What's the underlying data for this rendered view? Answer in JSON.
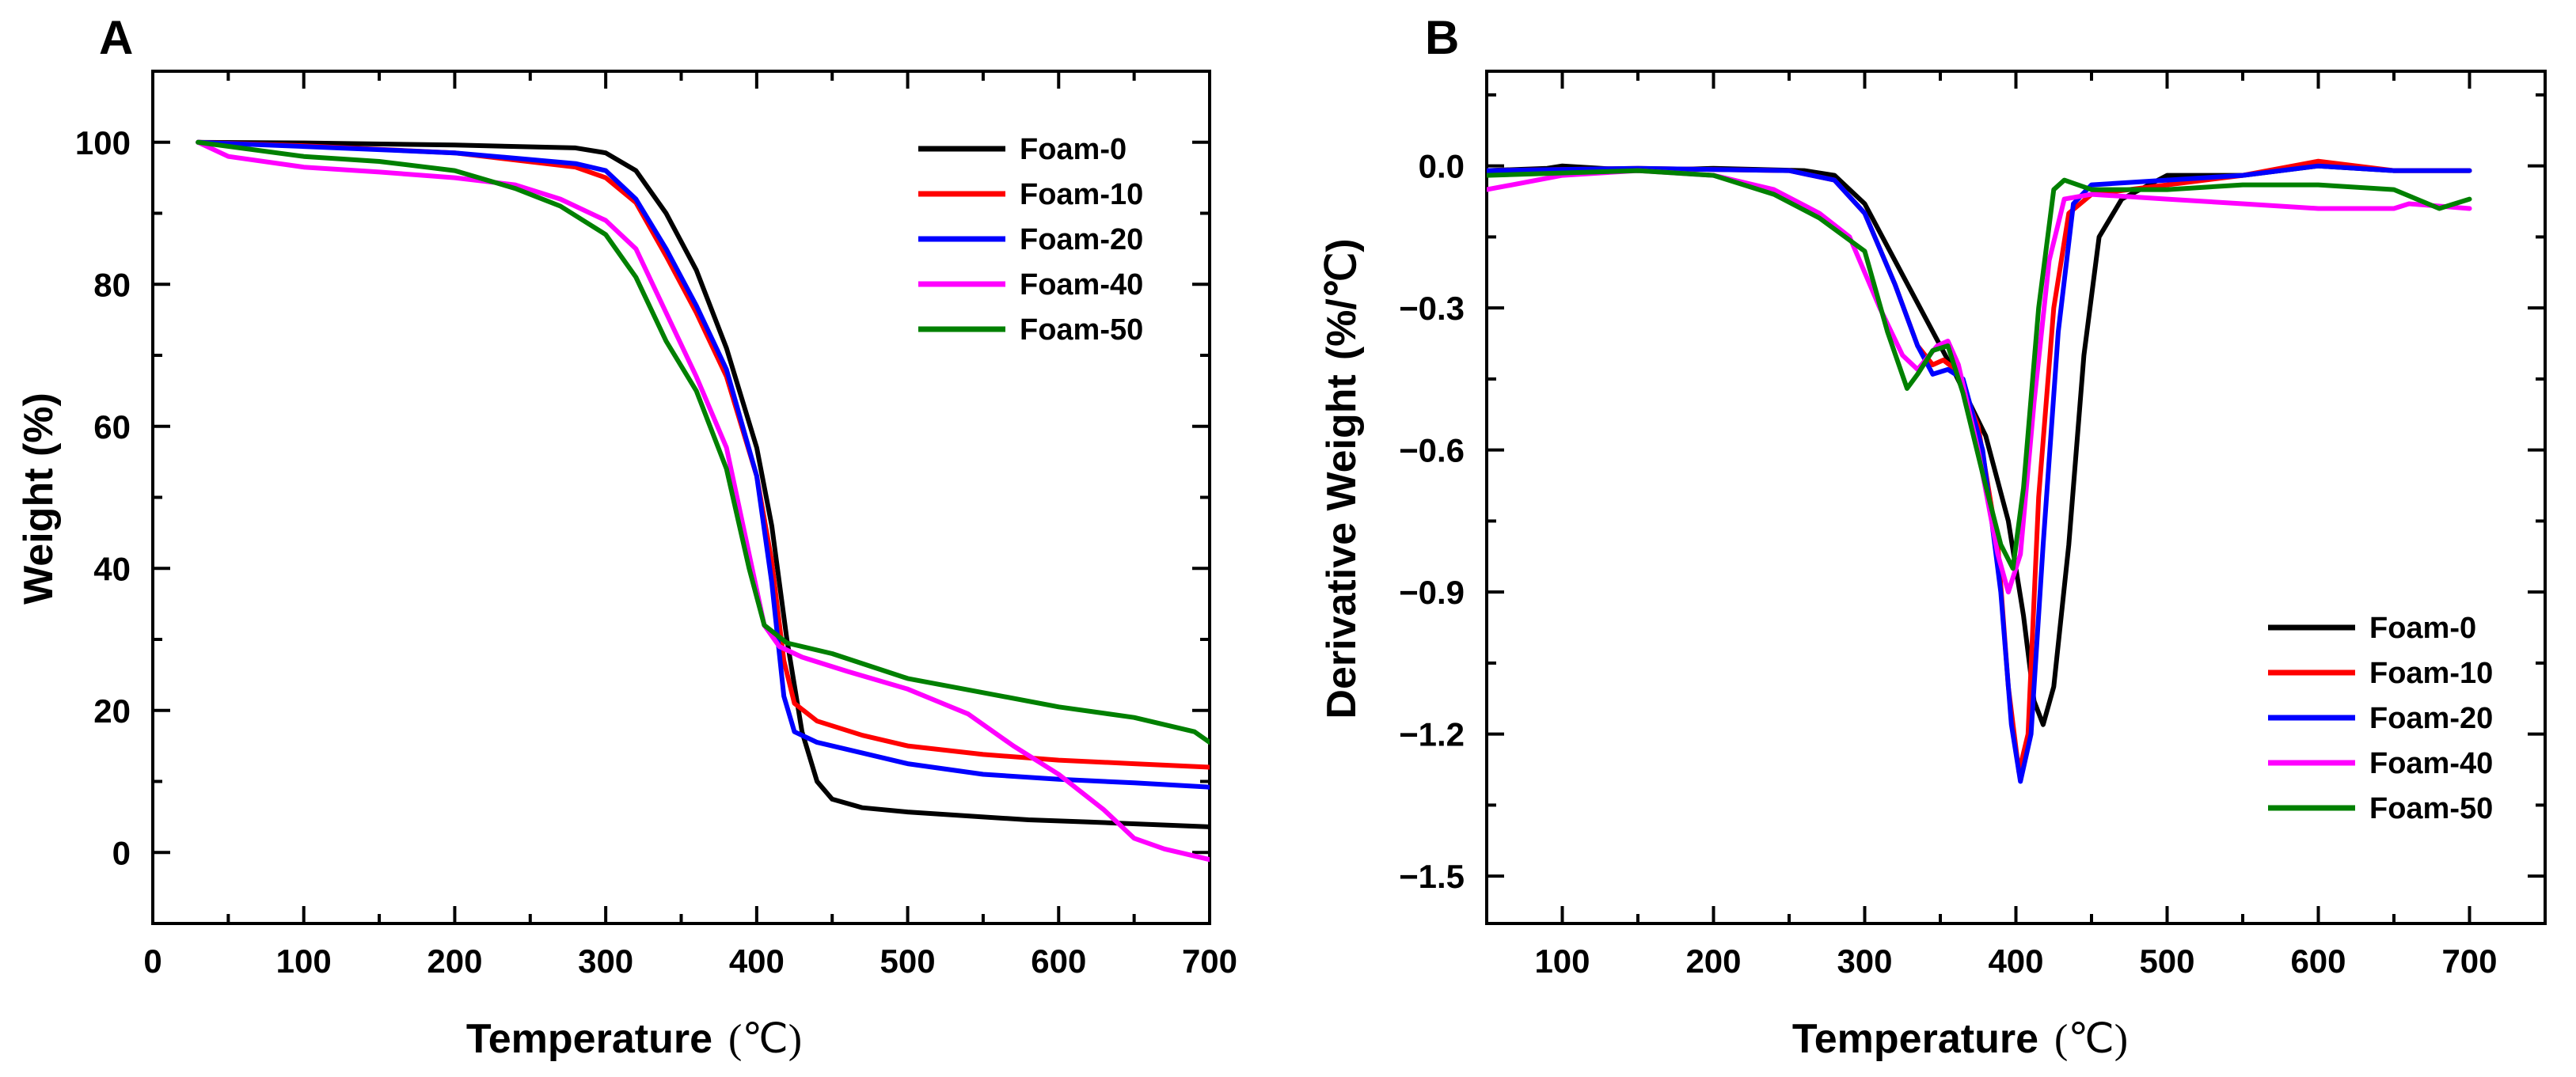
{
  "chart_data": [
    {
      "type": "line",
      "panel_label": "A",
      "title": "",
      "xlabel": "Temperature",
      "xunit": "(℃)",
      "ylabel": "Weight (%)",
      "xlim": [
        0,
        700
      ],
      "ylim": [
        -10,
        110
      ],
      "xticks": [
        0,
        100,
        200,
        300,
        400,
        500,
        600,
        700
      ],
      "yticks": [
        0,
        20,
        40,
        60,
        80,
        100
      ],
      "grid": false,
      "legend": "top-right",
      "series": [
        {
          "name": "Foam-0",
          "color": "#000000",
          "points": [
            [
              30,
              100
            ],
            [
              100,
              99.9
            ],
            [
              200,
              99.6
            ],
            [
              280,
              99.2
            ],
            [
              300,
              98.5
            ],
            [
              320,
              96
            ],
            [
              340,
              90
            ],
            [
              360,
              82
            ],
            [
              380,
              71
            ],
            [
              400,
              57
            ],
            [
              410,
              46
            ],
            [
              420,
              30
            ],
            [
              430,
              17
            ],
            [
              440,
              10
            ],
            [
              450,
              7.5
            ],
            [
              470,
              6.3
            ],
            [
              500,
              5.7
            ],
            [
              550,
              5
            ],
            [
              580,
              4.6
            ],
            [
              620,
              4.3
            ],
            [
              700,
              3.6
            ]
          ]
        },
        {
          "name": "Foam-10",
          "color": "#ff0000",
          "points": [
            [
              30,
              100
            ],
            [
              100,
              99.5
            ],
            [
              200,
              98.5
            ],
            [
              280,
              96.5
            ],
            [
              300,
              95
            ],
            [
              320,
              91.5
            ],
            [
              340,
              84
            ],
            [
              360,
              76
            ],
            [
              380,
              67
            ],
            [
              400,
              53
            ],
            [
              410,
              41
            ],
            [
              418,
              27
            ],
            [
              425,
              21
            ],
            [
              440,
              18.5
            ],
            [
              470,
              16.5
            ],
            [
              500,
              15
            ],
            [
              550,
              13.8
            ],
            [
              600,
              13
            ],
            [
              650,
              12.5
            ],
            [
              700,
              12
            ]
          ]
        },
        {
          "name": "Foam-20",
          "color": "#0000ff",
          "points": [
            [
              30,
              100
            ],
            [
              100,
              99.4
            ],
            [
              200,
              98.5
            ],
            [
              280,
              97
            ],
            [
              300,
              96
            ],
            [
              320,
              92
            ],
            [
              340,
              85
            ],
            [
              360,
              77
            ],
            [
              380,
              68
            ],
            [
              400,
              53
            ],
            [
              410,
              38
            ],
            [
              418,
              22
            ],
            [
              425,
              17
            ],
            [
              440,
              15.5
            ],
            [
              470,
              14
            ],
            [
              500,
              12.5
            ],
            [
              550,
              11
            ],
            [
              600,
              10.3
            ],
            [
              650,
              9.8
            ],
            [
              700,
              9.2
            ]
          ]
        },
        {
          "name": "Foam-40",
          "color": "#ff00ff",
          "points": [
            [
              30,
              100
            ],
            [
              50,
              98
            ],
            [
              100,
              96.5
            ],
            [
              150,
              95.8
            ],
            [
              200,
              95
            ],
            [
              240,
              94
            ],
            [
              270,
              92
            ],
            [
              300,
              89
            ],
            [
              320,
              85
            ],
            [
              340,
              76
            ],
            [
              360,
              67
            ],
            [
              380,
              57
            ],
            [
              395,
              42
            ],
            [
              405,
              32
            ],
            [
              415,
              29
            ],
            [
              430,
              27.5
            ],
            [
              460,
              25.5
            ],
            [
              500,
              23
            ],
            [
              540,
              19.5
            ],
            [
              570,
              15
            ],
            [
              600,
              11
            ],
            [
              630,
              6
            ],
            [
              650,
              2
            ],
            [
              670,
              0.5
            ],
            [
              700,
              -1
            ]
          ]
        },
        {
          "name": "Foam-50",
          "color": "#008000",
          "points": [
            [
              30,
              100
            ],
            [
              100,
              98
            ],
            [
              150,
              97.3
            ],
            [
              200,
              96
            ],
            [
              240,
              93.5
            ],
            [
              270,
              91
            ],
            [
              300,
              87
            ],
            [
              320,
              81
            ],
            [
              340,
              72
            ],
            [
              360,
              65
            ],
            [
              380,
              54
            ],
            [
              395,
              40
            ],
            [
              405,
              32
            ],
            [
              420,
              29.5
            ],
            [
              450,
              28
            ],
            [
              500,
              24.5
            ],
            [
              550,
              22.5
            ],
            [
              600,
              20.5
            ],
            [
              650,
              19
            ],
            [
              690,
              17
            ],
            [
              700,
              15.5
            ]
          ]
        }
      ]
    },
    {
      "type": "line",
      "panel_label": "B",
      "title": "",
      "xlabel": "Temperature",
      "xunit": "(℃)",
      "ylabel": "Derivative Weight",
      "yunit": "(%/℃)",
      "xlim": [
        50,
        750
      ],
      "ylim": [
        -1.6,
        0.2
      ],
      "xticks": [
        100,
        200,
        300,
        400,
        500,
        600,
        700
      ],
      "yticks": [
        0.0,
        -0.3,
        -0.6,
        -0.9,
        -1.2,
        -1.5
      ],
      "ytick_labels": [
        "0.0",
        "−0.3",
        "−0.6",
        "−0.9",
        "−1.2",
        "−1.5"
      ],
      "grid": false,
      "legend": "bottom-right",
      "series": [
        {
          "name": "Foam-0",
          "color": "#000000",
          "points": [
            [
              50,
              -0.01
            ],
            [
              90,
              -0.005
            ],
            [
              100,
              0
            ],
            [
              150,
              -0.01
            ],
            [
              200,
              -0.005
            ],
            [
              260,
              -0.01
            ],
            [
              280,
              -0.02
            ],
            [
              300,
              -0.08
            ],
            [
              320,
              -0.2
            ],
            [
              340,
              -0.32
            ],
            [
              360,
              -0.44
            ],
            [
              380,
              -0.57
            ],
            [
              395,
              -0.75
            ],
            [
              405,
              -0.95
            ],
            [
              412,
              -1.13
            ],
            [
              418,
              -1.18
            ],
            [
              425,
              -1.1
            ],
            [
              435,
              -0.8
            ],
            [
              445,
              -0.4
            ],
            [
              455,
              -0.15
            ],
            [
              470,
              -0.07
            ],
            [
              500,
              -0.02
            ],
            [
              550,
              -0.02
            ],
            [
              600,
              0
            ],
            [
              650,
              -0.01
            ],
            [
              700,
              -0.01
            ]
          ]
        },
        {
          "name": "Foam-10",
          "color": "#ff0000",
          "points": [
            [
              50,
              -0.01
            ],
            [
              150,
              -0.005
            ],
            [
              250,
              -0.01
            ],
            [
              280,
              -0.03
            ],
            [
              300,
              -0.1
            ],
            [
              320,
              -0.25
            ],
            [
              335,
              -0.38
            ],
            [
              345,
              -0.42
            ],
            [
              352,
              -0.41
            ],
            [
              360,
              -0.43
            ],
            [
              375,
              -0.55
            ],
            [
              388,
              -0.8
            ],
            [
              395,
              -1.1
            ],
            [
              402,
              -1.28
            ],
            [
              408,
              -1.2
            ],
            [
              415,
              -0.7
            ],
            [
              425,
              -0.3
            ],
            [
              435,
              -0.1
            ],
            [
              450,
              -0.06
            ],
            [
              500,
              -0.04
            ],
            [
              550,
              -0.02
            ],
            [
              600,
              0.01
            ],
            [
              650,
              -0.01
            ],
            [
              700,
              -0.01
            ]
          ]
        },
        {
          "name": "Foam-20",
          "color": "#0000ff",
          "points": [
            [
              50,
              -0.01
            ],
            [
              150,
              -0.005
            ],
            [
              250,
              -0.01
            ],
            [
              280,
              -0.03
            ],
            [
              300,
              -0.1
            ],
            [
              320,
              -0.25
            ],
            [
              335,
              -0.38
            ],
            [
              345,
              -0.44
            ],
            [
              355,
              -0.43
            ],
            [
              365,
              -0.45
            ],
            [
              378,
              -0.6
            ],
            [
              390,
              -0.9
            ],
            [
              397,
              -1.18
            ],
            [
              403,
              -1.3
            ],
            [
              410,
              -1.2
            ],
            [
              418,
              -0.8
            ],
            [
              428,
              -0.35
            ],
            [
              438,
              -0.08
            ],
            [
              450,
              -0.04
            ],
            [
              500,
              -0.03
            ],
            [
              550,
              -0.02
            ],
            [
              600,
              0
            ],
            [
              650,
              -0.01
            ],
            [
              700,
              -0.01
            ]
          ]
        },
        {
          "name": "Foam-40",
          "color": "#ff00ff",
          "points": [
            [
              50,
              -0.05
            ],
            [
              100,
              -0.02
            ],
            [
              150,
              -0.01
            ],
            [
              200,
              -0.02
            ],
            [
              240,
              -0.05
            ],
            [
              270,
              -0.1
            ],
            [
              290,
              -0.15
            ],
            [
              310,
              -0.3
            ],
            [
              325,
              -0.4
            ],
            [
              335,
              -0.43
            ],
            [
              348,
              -0.38
            ],
            [
              355,
              -0.37
            ],
            [
              362,
              -0.42
            ],
            [
              375,
              -0.6
            ],
            [
              388,
              -0.82
            ],
            [
              395,
              -0.9
            ],
            [
              403,
              -0.82
            ],
            [
              412,
              -0.5
            ],
            [
              422,
              -0.2
            ],
            [
              432,
              -0.07
            ],
            [
              450,
              -0.06
            ],
            [
              500,
              -0.07
            ],
            [
              550,
              -0.08
            ],
            [
              600,
              -0.09
            ],
            [
              650,
              -0.09
            ],
            [
              660,
              -0.08
            ],
            [
              700,
              -0.09
            ]
          ]
        },
        {
          "name": "Foam-50",
          "color": "#008000",
          "points": [
            [
              50,
              -0.02
            ],
            [
              150,
              -0.01
            ],
            [
              200,
              -0.02
            ],
            [
              240,
              -0.06
            ],
            [
              270,
              -0.11
            ],
            [
              300,
              -0.18
            ],
            [
              315,
              -0.35
            ],
            [
              328,
              -0.47
            ],
            [
              335,
              -0.44
            ],
            [
              345,
              -0.39
            ],
            [
              355,
              -0.38
            ],
            [
              365,
              -0.48
            ],
            [
              378,
              -0.65
            ],
            [
              390,
              -0.8
            ],
            [
              398,
              -0.85
            ],
            [
              405,
              -0.68
            ],
            [
              415,
              -0.3
            ],
            [
              425,
              -0.05
            ],
            [
              432,
              -0.03
            ],
            [
              450,
              -0.05
            ],
            [
              500,
              -0.05
            ],
            [
              550,
              -0.04
            ],
            [
              600,
              -0.04
            ],
            [
              650,
              -0.05
            ],
            [
              680,
              -0.09
            ],
            [
              700,
              -0.07
            ]
          ]
        }
      ]
    }
  ]
}
